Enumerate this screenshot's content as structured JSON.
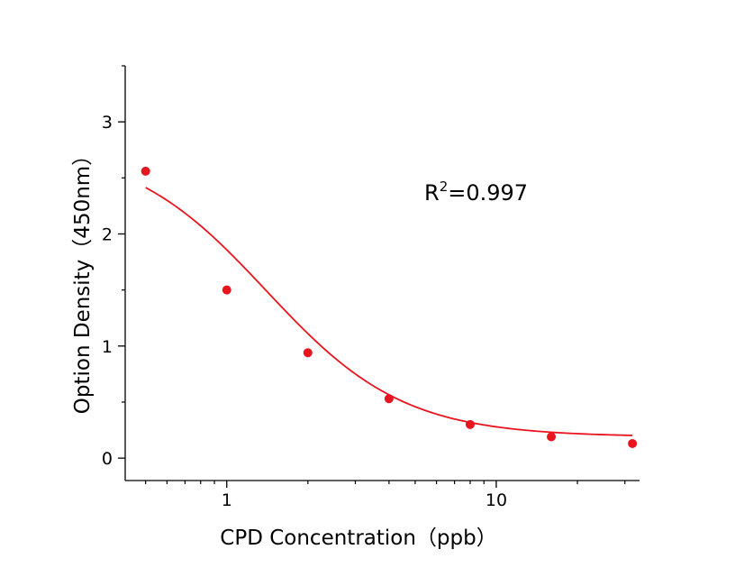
{
  "chart_data": {
    "type": "scatter",
    "xlabel": "CPD  Concentration（ppb）",
    "ylabel": "Option Density（450nm）",
    "x_scale": "log",
    "xlim": [
      0.42,
      34
    ],
    "ylim": [
      -0.2,
      3.5
    ],
    "x_ticks_major": [
      1,
      10
    ],
    "x_tick_labels": [
      "1",
      "10"
    ],
    "x_ticks_minor": [
      0.5,
      0.6,
      0.7,
      0.8,
      0.9,
      2,
      3,
      4,
      5,
      6,
      7,
      8,
      9,
      20,
      30
    ],
    "y_ticks": [
      0,
      1,
      2,
      3
    ],
    "y_tick_labels": [
      "0",
      "1",
      "2",
      "3"
    ],
    "grid": false,
    "legend": "none",
    "color": "#e8141e",
    "series": [
      {
        "kind": "points",
        "x": [
          0.5,
          1,
          2,
          4,
          8,
          16,
          32
        ],
        "y": [
          2.56,
          1.5,
          0.94,
          0.53,
          0.3,
          0.19,
          0.13
        ]
      },
      {
        "kind": "fit",
        "model": "4PL",
        "params": {
          "A": 2.8,
          "D": 0.19,
          "C": 1.4,
          "B": 1.7
        },
        "x_range": [
          0.5,
          32
        ]
      }
    ],
    "annotation": {
      "text": "R",
      "superscript": "2",
      "suffix": "=0.997"
    }
  }
}
